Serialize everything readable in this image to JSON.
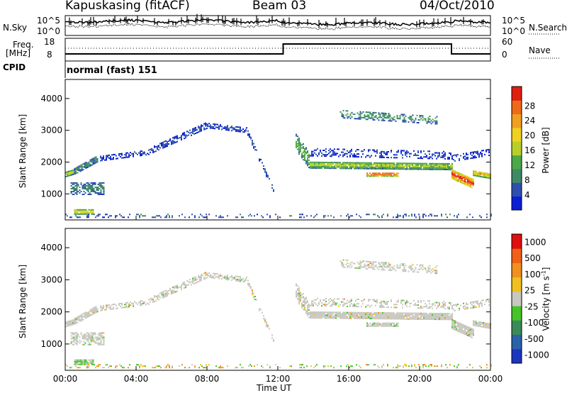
{
  "header": {
    "station": "Kapuskasing (fitACF)",
    "beam": "Beam 03",
    "date": "04/Oct/2010"
  },
  "top_panels": {
    "nsky_label": "N.Sky",
    "nsearch_label": "N.Search",
    "freq_label_1": "Freq.",
    "freq_label_2": "[MHz]",
    "nave_label": "Nave",
    "cpid_label": "CPID",
    "cpid_value": "normal (fast) 151",
    "noise_ticks_left": [
      "10^5",
      "10^0"
    ],
    "noise_ticks_right": [
      "10^5",
      "10^0"
    ],
    "freq_ticks": [
      "18",
      "8"
    ],
    "nave_ticks": [
      "60",
      "0"
    ]
  },
  "chart_data": [
    {
      "type": "heatmap",
      "name": "power",
      "ylabel": "Slant Range [km]",
      "yticks": [
        1000,
        2000,
        3000,
        4000
      ],
      "ylim": [
        180,
        4600
      ],
      "xlim": [
        0,
        24
      ],
      "colorbar": {
        "label": "Power [dB]",
        "ticks": [
          "4",
          "8",
          "12",
          "16",
          "20",
          "24",
          "28"
        ],
        "colors": [
          "#0b1fd6",
          "#2f4fb0",
          "#3e8a66",
          "#4da84a",
          "#b8cf2a",
          "#f0d020",
          "#f0a020",
          "#ee6a18",
          "#e02010"
        ]
      }
    },
    {
      "type": "heatmap",
      "name": "velocity",
      "ylabel": "Slant Range [km]",
      "yticks": [
        1000,
        2000,
        3000,
        4000
      ],
      "ylim": [
        180,
        4600
      ],
      "xlim": [
        0,
        24
      ],
      "xlabel": "Time UT",
      "xticks": [
        "00:00",
        "04:00",
        "08:00",
        "12:00",
        "16:00",
        "20:00",
        "00:00"
      ],
      "colorbar": {
        "label": "Velocity [m s",
        "label_sup": "-1",
        "label_end": "]",
        "ticks": [
          "1000",
          "500",
          "100",
          "25",
          "-25",
          "-100",
          "-500",
          "-1000"
        ],
        "colors": [
          "#1d36c0",
          "#2c62a8",
          "#3b8a5a",
          "#45c42a",
          "#c8c8c0",
          "#f0c020",
          "#f09020",
          "#f06018",
          "#e01010"
        ]
      }
    }
  ]
}
